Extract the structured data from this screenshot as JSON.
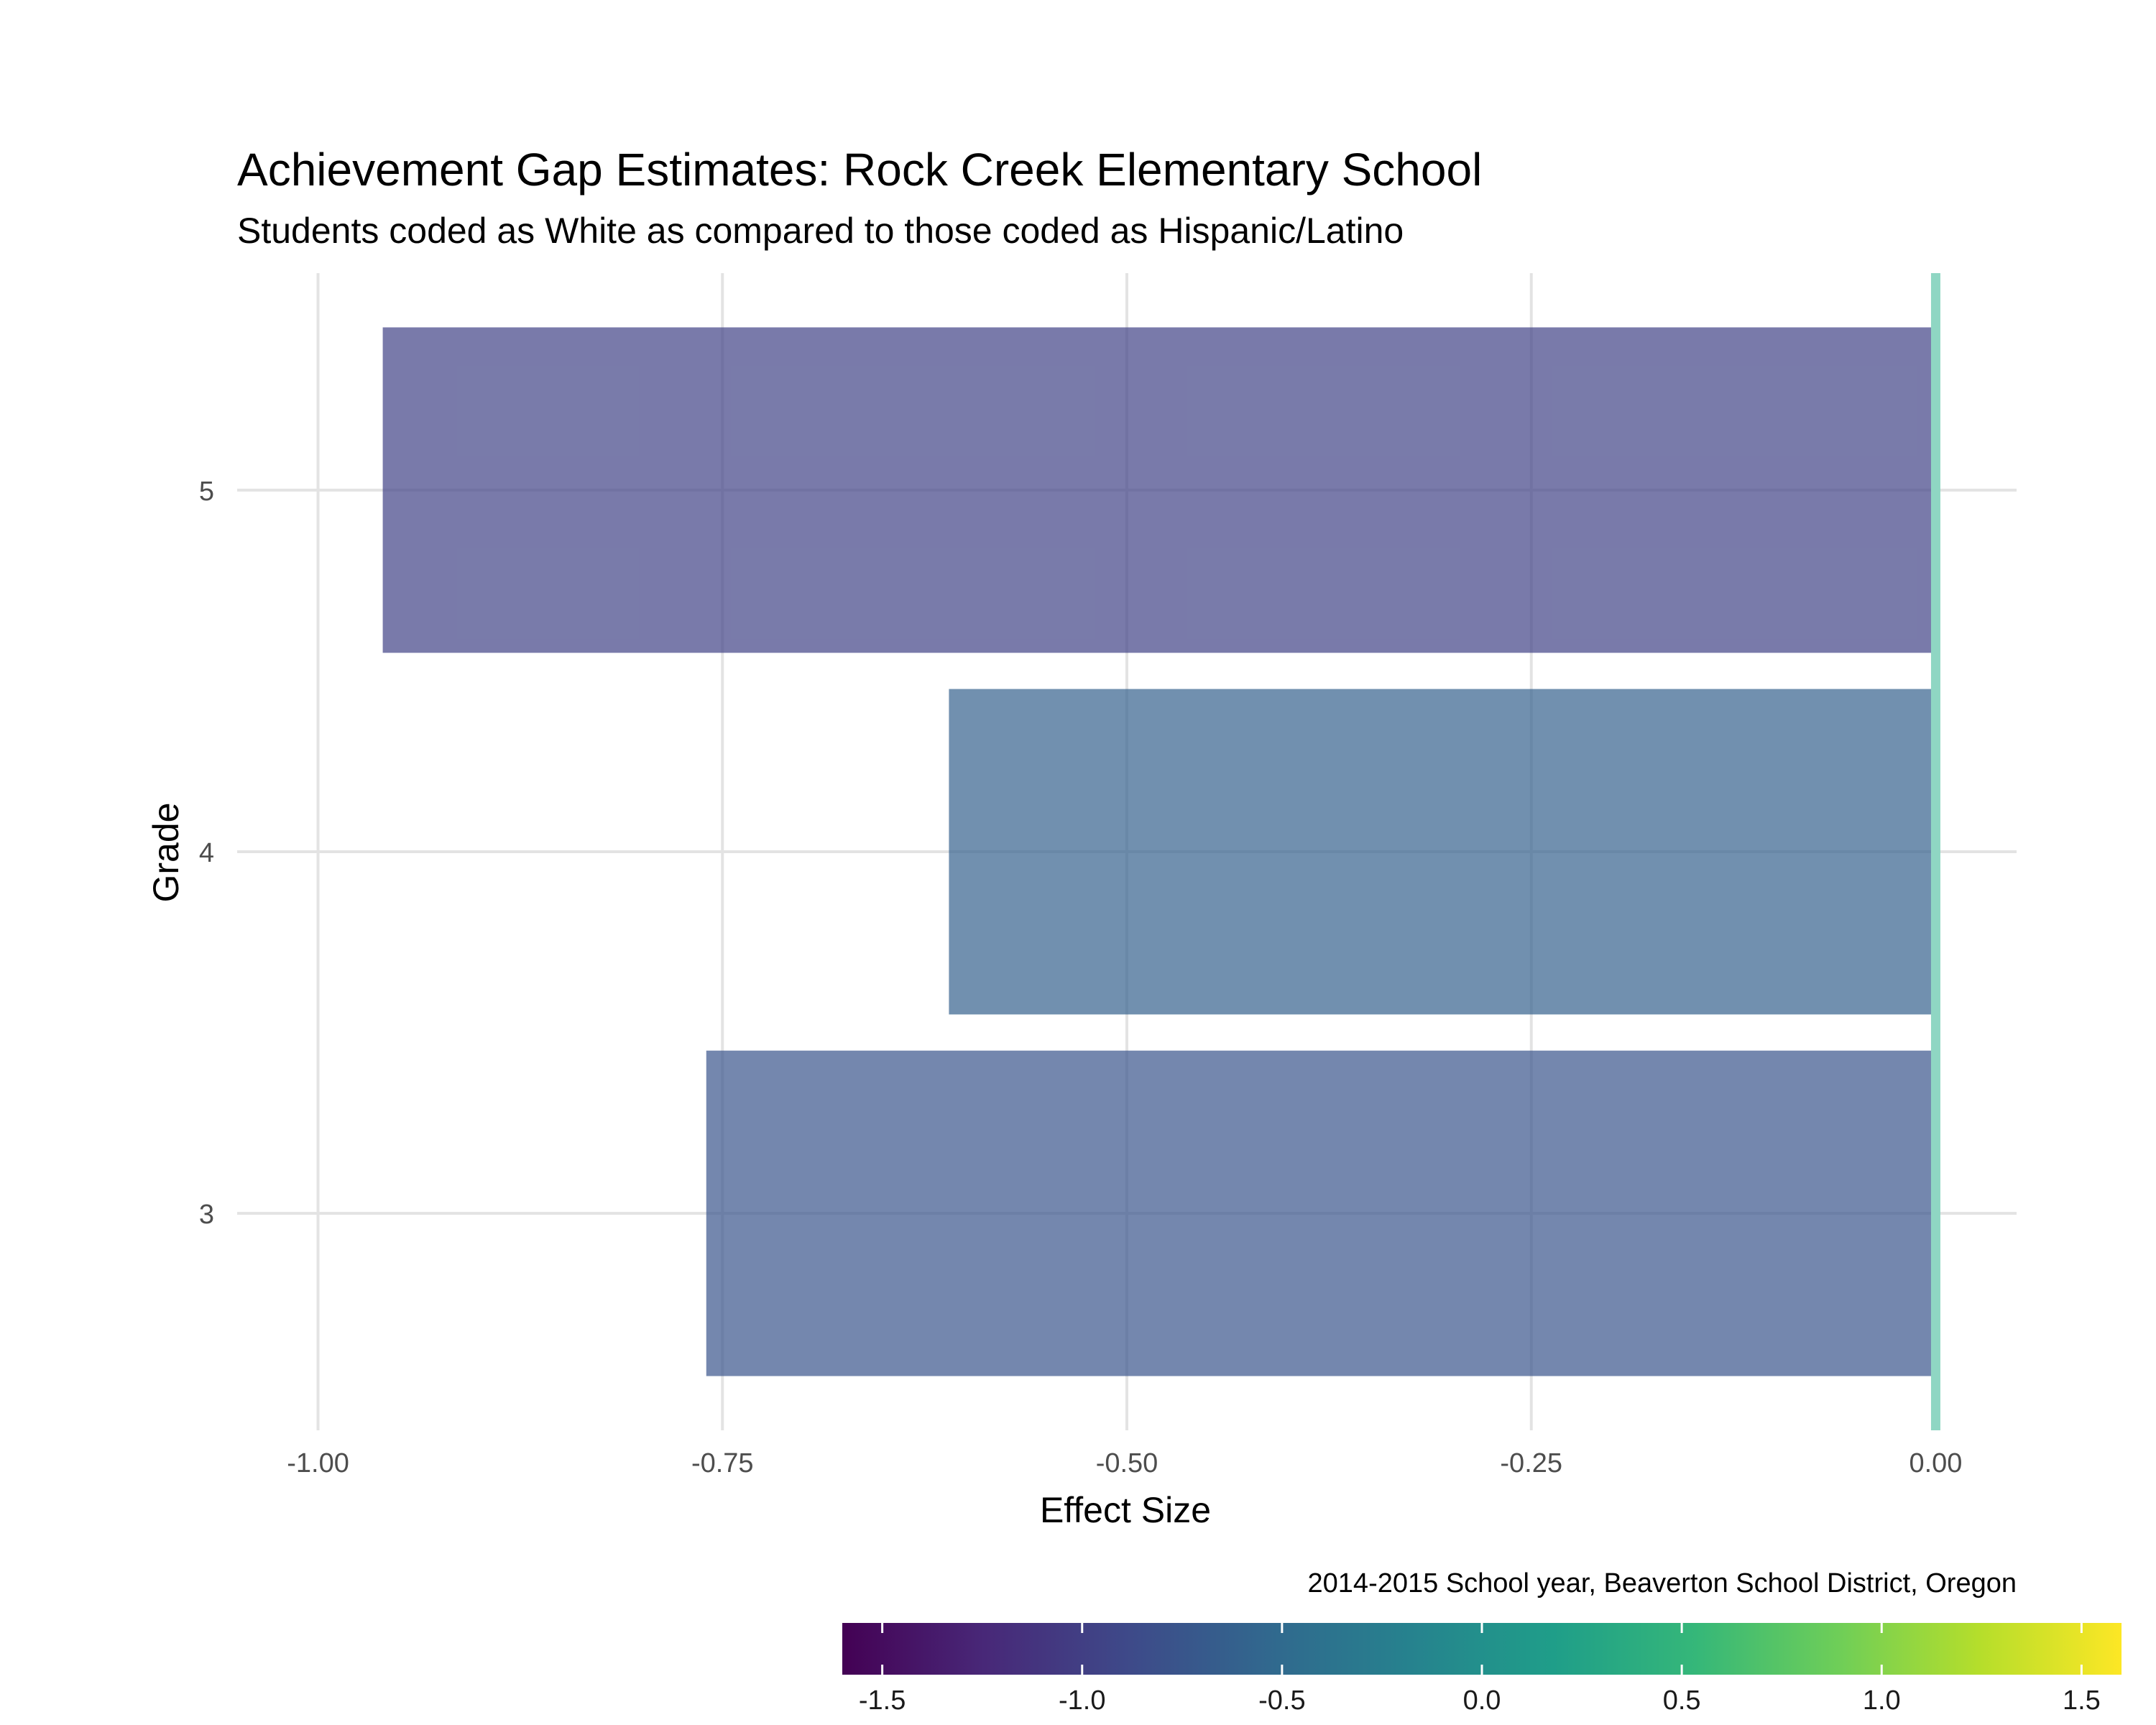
{
  "chart_data": {
    "type": "bar",
    "orientation": "horizontal",
    "title": "Achievement Gap Estimates: Rock Creek Elementary School",
    "subtitle": "Students coded as White as compared to those coded as Hispanic/Latino",
    "xlabel": "Effect Size",
    "ylabel": "Grade",
    "caption": "2014-2015 School year, Beaverton School District, Oregon",
    "categories": [
      "3",
      "4",
      "5"
    ],
    "values": [
      -0.76,
      -0.61,
      -0.96
    ],
    "xlim": [
      -1.0,
      0.0
    ],
    "x_ticks": [
      -1.0,
      -0.75,
      -0.5,
      -0.25,
      0.0
    ],
    "x_tick_labels": [
      "-1.00",
      "-0.75",
      "-0.50",
      "-0.25",
      "0.00"
    ],
    "reference_line": {
      "x": 0.0,
      "color": "#8fd6c3"
    },
    "grid": true,
    "bar_opacity": 0.7,
    "colorscale": {
      "name": "viridis",
      "range": [
        -1.6,
        1.6
      ],
      "ticks": [
        -1.5,
        -1.0,
        -0.5,
        0.0,
        0.5,
        1.0,
        1.5
      ],
      "tick_labels": [
        "-1.5",
        "-1.0",
        "-0.5",
        "0.0",
        "0.5",
        "1.0",
        "1.5"
      ],
      "legend_position": "bottom-right"
    }
  }
}
